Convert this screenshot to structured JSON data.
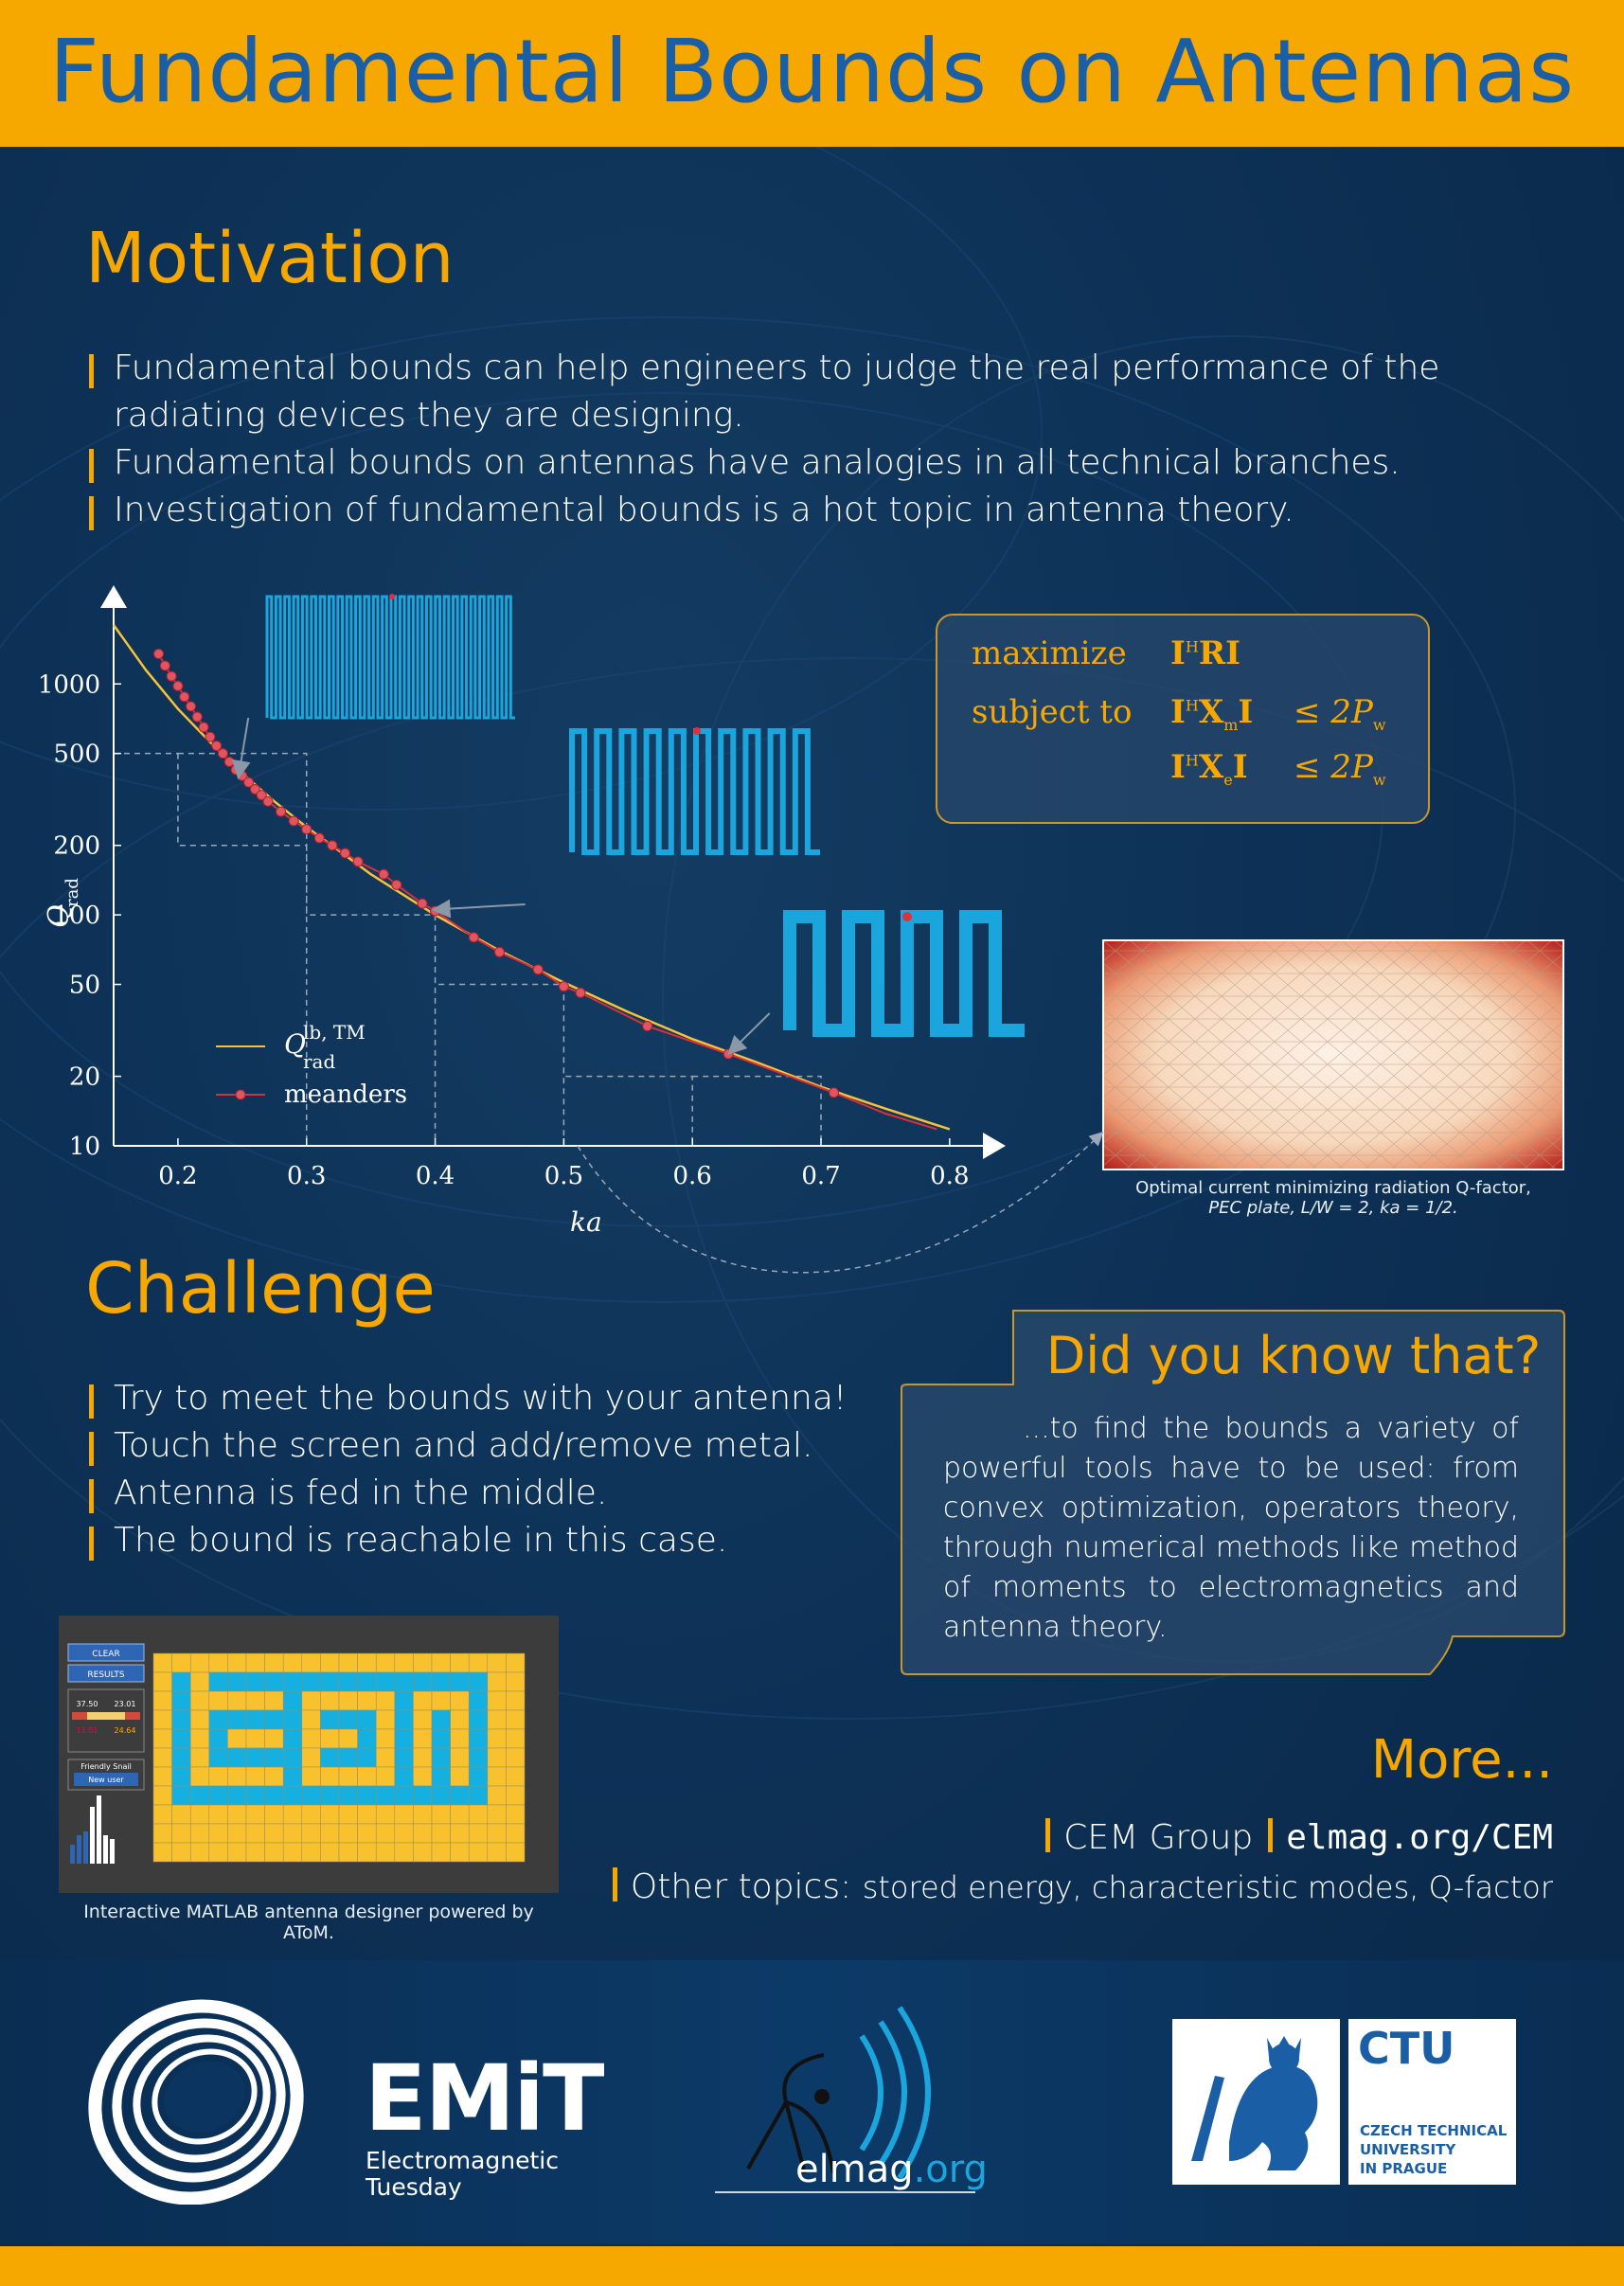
{
  "title": "Fundamental Bounds on Antennas",
  "motivation": {
    "heading": "Motivation",
    "items": [
      "Fundamental bounds can help engineers to judge the real performance of the radiating devices they are designing.",
      "Fundamental bounds on antennas have analogies in all technical branches.",
      "Investigation of fundamental bounds is a hot topic in antenna theory."
    ]
  },
  "chart_data": {
    "type": "line",
    "xlabel": "ka",
    "ylabel": "Q_rad",
    "xlim": [
      0.15,
      0.82
    ],
    "ylim": [
      10,
      1800
    ],
    "yscale": "log",
    "xticks": [
      "0.2",
      "0.3",
      "0.4",
      "0.5",
      "0.6",
      "0.7",
      "0.8"
    ],
    "yticks": [
      "10",
      "20",
      "50",
      "100",
      "200",
      "500",
      "1000"
    ],
    "legend_position": "bottom-left",
    "series": [
      {
        "name": "Q_rad^{lb, TM}",
        "color": "#f6c23a",
        "x": [
          0.13,
          0.15,
          0.175,
          0.2,
          0.225,
          0.25,
          0.275,
          0.3,
          0.325,
          0.35,
          0.4,
          0.45,
          0.5,
          0.55,
          0.6,
          0.65,
          0.7,
          0.75,
          0.8
        ],
        "y": [
          2700,
          1800,
          1150,
          780,
          560,
          410,
          310,
          240,
          190,
          150,
          100,
          70,
          51,
          38,
          29,
          23,
          18,
          14.5,
          11.8
        ]
      },
      {
        "name": "meanders",
        "color": "#d9303a",
        "x": [
          0.185,
          0.19,
          0.195,
          0.2,
          0.205,
          0.21,
          0.215,
          0.22,
          0.225,
          0.23,
          0.235,
          0.24,
          0.245,
          0.25,
          0.255,
          0.26,
          0.265,
          0.27,
          0.28,
          0.29,
          0.3,
          0.31,
          0.32,
          0.33,
          0.34,
          0.36,
          0.37,
          0.39,
          0.4,
          0.43,
          0.45,
          0.48,
          0.5,
          0.513,
          0.565,
          0.628,
          0.71
        ],
        "y": [
          1350,
          1200,
          1080,
          980,
          880,
          800,
          720,
          650,
          590,
          540,
          500,
          460,
          425,
          400,
          375,
          350,
          330,
          310,
          280,
          255,
          235,
          215,
          200,
          185,
          170,
          150,
          135,
          112,
          104,
          80,
          69,
          58,
          49,
          46,
          33,
          25,
          17
        ]
      }
    ]
  },
  "legend": {
    "lb_label": "Q",
    "lb_sup": "lb, TM",
    "lb_sub": "rad",
    "meanders_label": "meanders"
  },
  "axis": {
    "xlabel": "ka",
    "ylabel_main": "Q",
    "ylabel_sub": "rad"
  },
  "optimization": {
    "maximize_kw": "maximize",
    "subject_kw": "subject to",
    "sup_h": "H",
    "sub_m": "m",
    "sub_e": "e",
    "sub_w": "w",
    "le": "≤ 2",
    "p": "P",
    "I": "I",
    "RI": "RI",
    "X": "X"
  },
  "current_caption_line1": "Optimal current minimizing radiation Q-factor,",
  "current_caption_line2": "PEC plate, L/W = 2, ka = 1/2.",
  "challenge": {
    "heading": "Challenge",
    "items": [
      "Try to meet the bounds with your antenna!",
      "Touch the screen and add/remove metal.",
      "Antenna is fed in the middle.",
      "The bound is reachable in this case."
    ]
  },
  "did_you_know": {
    "title": "Did you know that?",
    "text": "...to find the bounds a variety of powerful tools have to be used: from convex optimization, operators theory, through numerical methods like method of moments to electromagnetics and antenna theory."
  },
  "matlab": {
    "caption": "Interactive MATLAB antenna designer powered by AToM.",
    "btn_clear": "CLEAR",
    "btn_results": "RESULTS",
    "btn_new_user": "New user",
    "label_friendly": "Friendly Snail",
    "val1": "37.50",
    "val2": "23.01",
    "val3": "24.64",
    "val4": "11.01"
  },
  "more": {
    "heading": "More...",
    "cem_group": "CEM Group",
    "cem_url": "elmag.org/CEM",
    "other_topics": "Other topics:",
    "topics": "stored energy, characteristic modes, Q-factor"
  },
  "logos": {
    "emit_title": "EMiT",
    "emit_sub1": "Electromagnetic",
    "emit_sub2": "Tuesday",
    "elmag_a": "elmag",
    "elmag_b": ".org",
    "ctu": "CTU",
    "ctu_line1": "CZECH TECHNICAL",
    "ctu_line2": "UNIVERSITY",
    "ctu_line3": "IN PRAGUE"
  },
  "colors": {
    "background": "#0d3156",
    "accent": "#f6a800",
    "title_blue": "#1a5fa5",
    "cyan": "#1aa6dc"
  }
}
